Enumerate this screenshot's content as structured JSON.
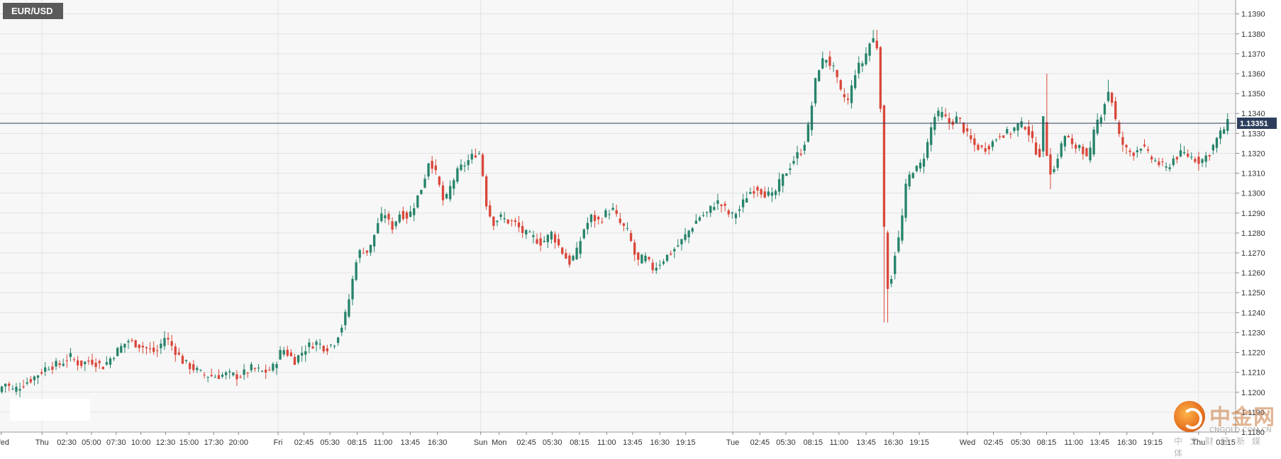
{
  "symbol": "EUR/USD",
  "watermark": {
    "logo_text": "中金网",
    "site": "CNGOLD.COM.CN",
    "tagline": "中文财经新媒体"
  },
  "colors": {
    "up": "#26836b",
    "down": "#d9473a",
    "price_line": "#2c3e5c",
    "grid": "#e2e2e2"
  },
  "chart_data": {
    "type": "candlestick",
    "instrument": "EUR/USD",
    "current_price": 1.13351,
    "current_price_label": "1.13351",
    "ylim": [
      1.118,
      1.1397
    ],
    "y_ticks": [
      {
        "value": 1.139,
        "label": "1.1390"
      },
      {
        "value": 1.138,
        "label": "1.1380"
      },
      {
        "value": 1.137,
        "label": "1.1370"
      },
      {
        "value": 1.136,
        "label": "1.1360"
      },
      {
        "value": 1.135,
        "label": "1.1350"
      },
      {
        "value": 1.134,
        "label": "1.1340"
      },
      {
        "value": 1.133,
        "label": "1.1330"
      },
      {
        "value": 1.132,
        "label": "1.1320"
      },
      {
        "value": 1.131,
        "label": "1.1310"
      },
      {
        "value": 1.13,
        "label": "1.1300"
      },
      {
        "value": 1.129,
        "label": "1.1290"
      },
      {
        "value": 1.128,
        "label": "1.1280"
      },
      {
        "value": 1.127,
        "label": "1.1270"
      },
      {
        "value": 1.126,
        "label": "1.1260"
      },
      {
        "value": 1.125,
        "label": "1.1250"
      },
      {
        "value": 1.124,
        "label": "1.1240"
      },
      {
        "value": 1.123,
        "label": "1.1230"
      },
      {
        "value": 1.122,
        "label": "1.1220"
      },
      {
        "value": 1.121,
        "label": "1.1210"
      },
      {
        "value": 1.12,
        "label": "1.1200"
      },
      {
        "value": 1.119,
        "label": "1.1190"
      },
      {
        "value": 1.118,
        "label": "1.1180"
      }
    ],
    "x_ticks": [
      {
        "label": "Wed",
        "pos": 0.001
      },
      {
        "label": "Thu",
        "pos": 0.034
      },
      {
        "label": "02:30",
        "pos": 0.054
      },
      {
        "label": "05:00",
        "pos": 0.074
      },
      {
        "label": "07:30",
        "pos": 0.094
      },
      {
        "label": "10:00",
        "pos": 0.114
      },
      {
        "label": "12:30",
        "pos": 0.134
      },
      {
        "label": "15:00",
        "pos": 0.153
      },
      {
        "label": "17:30",
        "pos": 0.173
      },
      {
        "label": "20:00",
        "pos": 0.193
      },
      {
        "label": "Fri",
        "pos": 0.225
      },
      {
        "label": "02:45",
        "pos": 0.246
      },
      {
        "label": "05:30",
        "pos": 0.267
      },
      {
        "label": "08:15",
        "pos": 0.289
      },
      {
        "label": "11:00",
        "pos": 0.31
      },
      {
        "label": "13:45",
        "pos": 0.332
      },
      {
        "label": "16:30",
        "pos": 0.354
      },
      {
        "label": "Sun",
        "pos": 0.389
      },
      {
        "label": "Mon",
        "pos": 0.404
      },
      {
        "label": "02:45",
        "pos": 0.426
      },
      {
        "label": "05:30",
        "pos": 0.447
      },
      {
        "label": "08:15",
        "pos": 0.469
      },
      {
        "label": "11:00",
        "pos": 0.491
      },
      {
        "label": "13:45",
        "pos": 0.512
      },
      {
        "label": "16:30",
        "pos": 0.534
      },
      {
        "label": "19:15",
        "pos": 0.555
      },
      {
        "label": "Tue",
        "pos": 0.593
      },
      {
        "label": "02:45",
        "pos": 0.615
      },
      {
        "label": "05:30",
        "pos": 0.636
      },
      {
        "label": "08:15",
        "pos": 0.658
      },
      {
        "label": "11:00",
        "pos": 0.679
      },
      {
        "label": "13:45",
        "pos": 0.701
      },
      {
        "label": "16:30",
        "pos": 0.723
      },
      {
        "label": "19:15",
        "pos": 0.744
      },
      {
        "label": "Wed",
        "pos": 0.783
      },
      {
        "label": "02:45",
        "pos": 0.804
      },
      {
        "label": "05:30",
        "pos": 0.826
      },
      {
        "label": "08:15",
        "pos": 0.847
      },
      {
        "label": "11:00",
        "pos": 0.869
      },
      {
        "label": "13:45",
        "pos": 0.89
      },
      {
        "label": "16:30",
        "pos": 0.912
      },
      {
        "label": "19:15",
        "pos": 0.933
      },
      {
        "label": "Thu",
        "pos": 0.97
      },
      {
        "label": "03:15",
        "pos": 0.992
      }
    ],
    "session_separators": [
      0.034,
      0.225,
      0.389,
      0.593,
      0.783,
      0.97
    ],
    "path_points": [
      [
        0.0,
        1.12
      ],
      [
        0.005,
        1.1205
      ],
      [
        0.012,
        1.1201
      ],
      [
        0.02,
        1.1204
      ],
      [
        0.03,
        1.1208
      ],
      [
        0.04,
        1.1213
      ],
      [
        0.05,
        1.1214
      ],
      [
        0.058,
        1.1218
      ],
      [
        0.066,
        1.1214
      ],
      [
        0.075,
        1.1216
      ],
      [
        0.085,
        1.1213
      ],
      [
        0.095,
        1.122
      ],
      [
        0.105,
        1.1226
      ],
      [
        0.113,
        1.1224
      ],
      [
        0.12,
        1.1222
      ],
      [
        0.128,
        1.122
      ],
      [
        0.135,
        1.1228
      ],
      [
        0.142,
        1.1222
      ],
      [
        0.15,
        1.1215
      ],
      [
        0.158,
        1.1212
      ],
      [
        0.165,
        1.1209
      ],
      [
        0.175,
        1.1208
      ],
      [
        0.185,
        1.1209
      ],
      [
        0.195,
        1.1208
      ],
      [
        0.205,
        1.1212
      ],
      [
        0.215,
        1.121
      ],
      [
        0.222,
        1.1212
      ],
      [
        0.23,
        1.1222
      ],
      [
        0.24,
        1.1216
      ],
      [
        0.25,
        1.1223
      ],
      [
        0.258,
        1.1225
      ],
      [
        0.265,
        1.1222
      ],
      [
        0.272,
        1.1225
      ],
      [
        0.28,
        1.1236
      ],
      [
        0.285,
        1.125
      ],
      [
        0.29,
        1.1268
      ],
      [
        0.295,
        1.1272
      ],
      [
        0.3,
        1.127
      ],
      [
        0.307,
        1.1285
      ],
      [
        0.313,
        1.129
      ],
      [
        0.318,
        1.1282
      ],
      [
        0.325,
        1.129
      ],
      [
        0.332,
        1.1288
      ],
      [
        0.338,
        1.1296
      ],
      [
        0.344,
        1.1305
      ],
      [
        0.349,
        1.1318
      ],
      [
        0.355,
        1.1308
      ],
      [
        0.361,
        1.1294
      ],
      [
        0.367,
        1.1305
      ],
      [
        0.373,
        1.1312
      ],
      [
        0.38,
        1.1316
      ],
      [
        0.386,
        1.132
      ],
      [
        0.39,
        1.132
      ],
      [
        0.395,
        1.1295
      ],
      [
        0.4,
        1.1285
      ],
      [
        0.406,
        1.1288
      ],
      [
        0.412,
        1.1286
      ],
      [
        0.418,
        1.1285
      ],
      [
        0.425,
        1.128
      ],
      [
        0.432,
        1.1278
      ],
      [
        0.44,
        1.1275
      ],
      [
        0.448,
        1.128
      ],
      [
        0.455,
        1.1272
      ],
      [
        0.462,
        1.1265
      ],
      [
        0.468,
        1.127
      ],
      [
        0.474,
        1.1282
      ],
      [
        0.48,
        1.1288
      ],
      [
        0.486,
        1.1286
      ],
      [
        0.492,
        1.129
      ],
      [
        0.497,
        1.1292
      ],
      [
        0.503,
        1.1285
      ],
      [
        0.51,
        1.128
      ],
      [
        0.517,
        1.1265
      ],
      [
        0.523,
        1.1268
      ],
      [
        0.53,
        1.1262
      ],
      [
        0.537,
        1.1266
      ],
      [
        0.544,
        1.127
      ],
      [
        0.552,
        1.1275
      ],
      [
        0.56,
        1.1282
      ],
      [
        0.567,
        1.1288
      ],
      [
        0.574,
        1.129
      ],
      [
        0.581,
        1.1296
      ],
      [
        0.587,
        1.1293
      ],
      [
        0.593,
        1.1288
      ],
      [
        0.6,
        1.1292
      ],
      [
        0.607,
        1.13
      ],
      [
        0.614,
        1.1303
      ],
      [
        0.62,
        1.13
      ],
      [
        0.627,
        1.1298
      ],
      [
        0.633,
        1.1306
      ],
      [
        0.639,
        1.1312
      ],
      [
        0.645,
        1.1318
      ],
      [
        0.651,
        1.1322
      ],
      [
        0.656,
        1.1334
      ],
      [
        0.661,
        1.1355
      ],
      [
        0.665,
        1.1365
      ],
      [
        0.67,
        1.1368
      ],
      [
        0.676,
        1.1362
      ],
      [
        0.682,
        1.135
      ],
      [
        0.688,
        1.1346
      ],
      [
        0.694,
        1.1362
      ],
      [
        0.7,
        1.1366
      ],
      [
        0.705,
        1.1375
      ],
      [
        0.709,
        1.1378
      ],
      [
        0.713,
        1.137
      ],
      [
        0.715,
        1.1322
      ],
      [
        0.718,
        1.126
      ],
      [
        0.721,
        1.125
      ],
      [
        0.725,
        1.1268
      ],
      [
        0.73,
        1.128
      ],
      [
        0.735,
        1.1305
      ],
      [
        0.74,
        1.1312
      ],
      [
        0.745,
        1.1312
      ],
      [
        0.751,
        1.1322
      ],
      [
        0.757,
        1.1338
      ],
      [
        0.763,
        1.134
      ],
      [
        0.77,
        1.1335
      ],
      [
        0.777,
        1.1338
      ],
      [
        0.783,
        1.133
      ],
      [
        0.79,
        1.1324
      ],
      [
        0.797,
        1.1322
      ],
      [
        0.804,
        1.1325
      ],
      [
        0.811,
        1.133
      ],
      [
        0.818,
        1.133
      ],
      [
        0.825,
        1.1334
      ],
      [
        0.832,
        1.1334
      ],
      [
        0.839,
        1.1322
      ],
      [
        0.843,
        1.132
      ],
      [
        0.846,
        1.1338
      ],
      [
        0.849,
        1.1318
      ],
      [
        0.853,
        1.1308
      ],
      [
        0.858,
        1.132
      ],
      [
        0.864,
        1.133
      ],
      [
        0.87,
        1.1322
      ],
      [
        0.876,
        1.1325
      ],
      [
        0.882,
        1.1315
      ],
      [
        0.888,
        1.1334
      ],
      [
        0.894,
        1.1342
      ],
      [
        0.898,
        1.1352
      ],
      [
        0.902,
        1.1345
      ],
      [
        0.906,
        1.133
      ],
      [
        0.912,
        1.1322
      ],
      [
        0.918,
        1.132
      ],
      [
        0.925,
        1.1324
      ],
      [
        0.932,
        1.1318
      ],
      [
        0.939,
        1.1315
      ],
      [
        0.945,
        1.1312
      ],
      [
        0.952,
        1.1318
      ],
      [
        0.959,
        1.132
      ],
      [
        0.966,
        1.1318
      ],
      [
        0.973,
        1.1316
      ],
      [
        0.98,
        1.132
      ],
      [
        0.987,
        1.1328
      ],
      [
        0.995,
        1.1335
      ]
    ],
    "spikes": [
      {
        "pos": 0.717,
        "low": 1.1235
      },
      {
        "pos": 0.847,
        "high": 1.136
      },
      {
        "pos": 0.85,
        "low": 1.1302
      },
      {
        "pos": 0.898,
        "high": 1.1357
      },
      {
        "pos": 0.708,
        "high": 1.1382
      }
    ]
  }
}
